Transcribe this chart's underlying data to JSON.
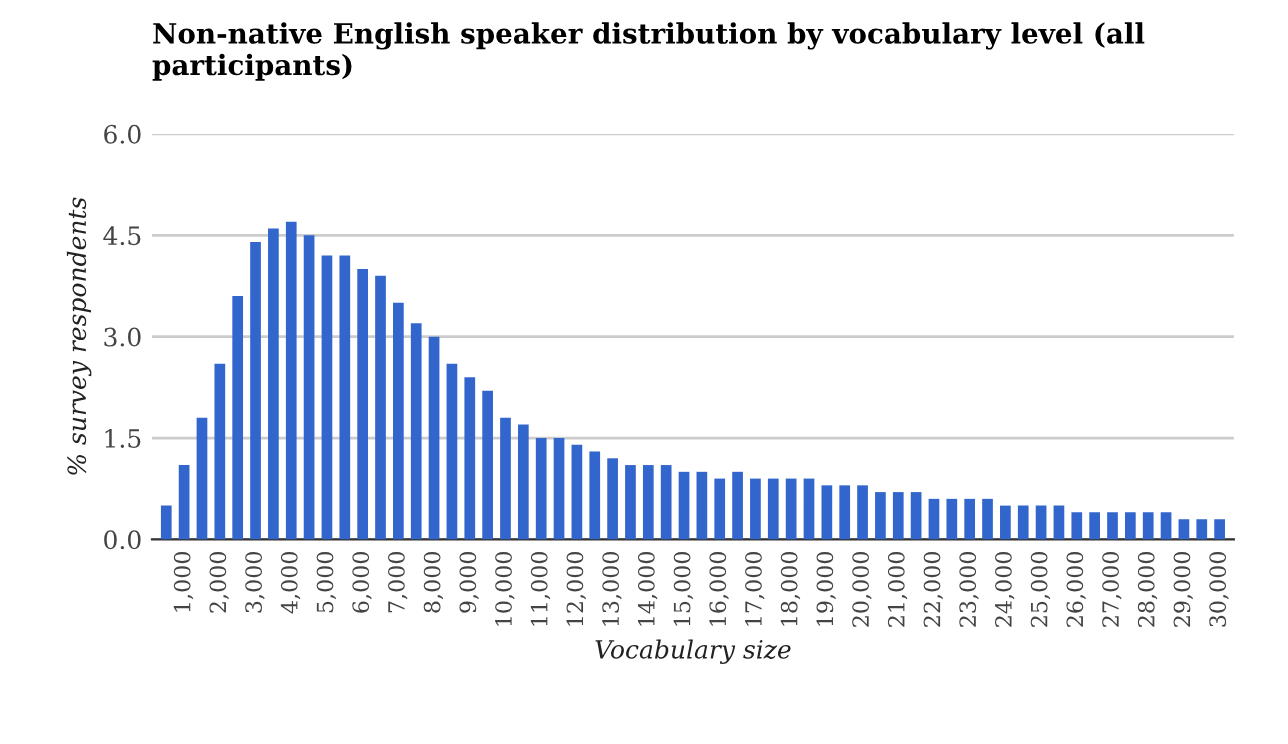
{
  "chart_data": {
    "type": "bar",
    "title": "Non-native English speaker distribution by vocabulary level (all participants)",
    "xlabel": "Vocabulary size",
    "ylabel": "% survey respondents",
    "categories": [
      null,
      "1,000",
      null,
      "2,000",
      null,
      "3,000",
      null,
      "4,000",
      null,
      "5,000",
      null,
      "6,000",
      null,
      "7,000",
      null,
      "8,000",
      null,
      "9,000",
      null,
      "10,000",
      null,
      "11,000",
      null,
      "12,000",
      null,
      "13,000",
      null,
      "14,000",
      null,
      "15,000",
      null,
      "16,000",
      null,
      "17,000",
      null,
      "18,000",
      null,
      "19,000",
      null,
      "20,000",
      null,
      "21,000",
      null,
      "22,000",
      null,
      "23,000",
      null,
      "24,000",
      null,
      "25,000",
      null,
      "26,000",
      null,
      "27,000",
      null,
      "28,000",
      null,
      "29,000",
      null,
      "30,000"
    ],
    "values": [
      0.5,
      1.1,
      1.8,
      2.6,
      3.6,
      4.4,
      4.6,
      4.7,
      4.5,
      4.2,
      4.2,
      4.0,
      3.9,
      3.5,
      3.2,
      3.0,
      2.6,
      2.4,
      2.2,
      1.8,
      1.7,
      1.5,
      1.5,
      1.4,
      1.3,
      1.2,
      1.1,
      1.1,
      1.1,
      1.0,
      1.0,
      0.9,
      1.0,
      0.9,
      0.9,
      0.9,
      0.9,
      0.8,
      0.8,
      0.8,
      0.7,
      0.7,
      0.7,
      0.6,
      0.6,
      0.6,
      0.6,
      0.5,
      0.5,
      0.5,
      0.5,
      0.4,
      0.4,
      0.4,
      0.4,
      0.4,
      0.4,
      0.3,
      0.3,
      0.3
    ],
    "color": "#3366cc",
    "ylim": [
      0,
      6
    ],
    "yticks": [
      {
        "value": 0,
        "label": "0.0"
      },
      {
        "value": 1.5,
        "label": "1.5"
      },
      {
        "value": 3,
        "label": "3.0"
      },
      {
        "value": 4.5,
        "label": "4.5"
      },
      {
        "value": 6,
        "label": "6.0"
      }
    ],
    "grid": "y",
    "legend": false
  }
}
